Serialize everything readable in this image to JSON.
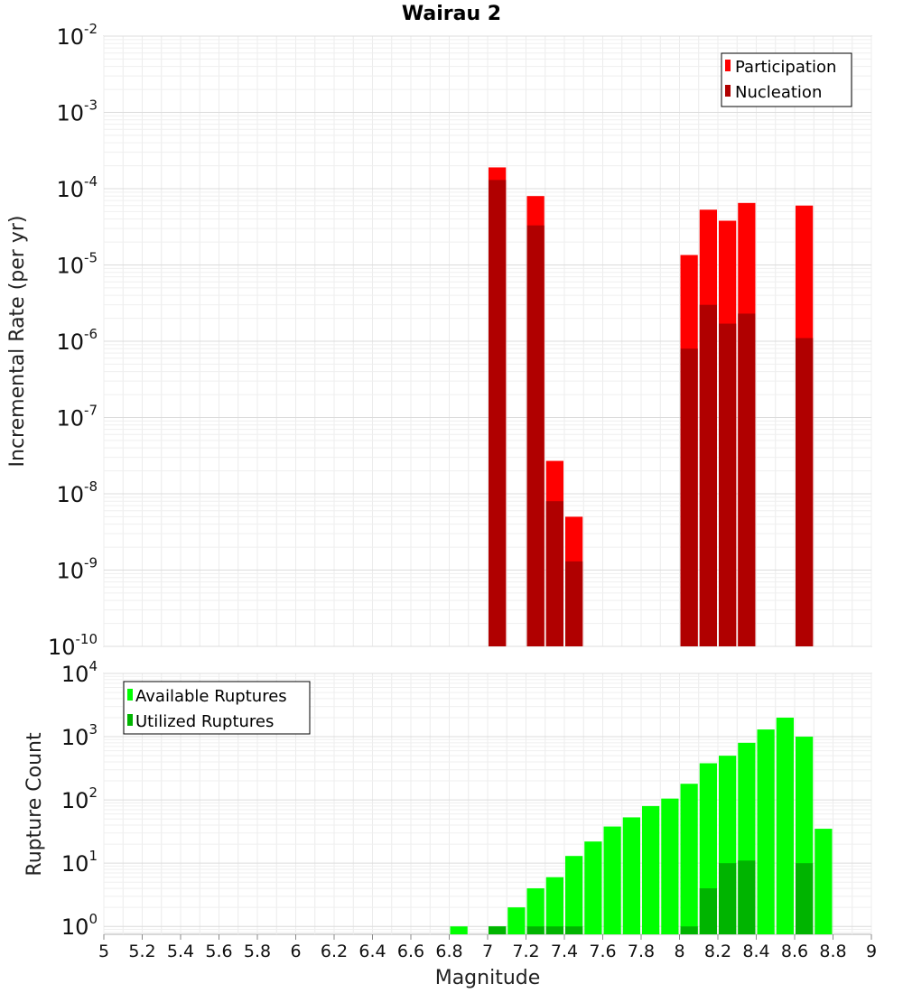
{
  "chart_data": [
    {
      "type": "bar",
      "title": "Wairau 2",
      "xlabel": "",
      "ylabel": "Incremental Rate (per yr)",
      "yscale": "log",
      "ylim": [
        1e-10,
        0.01
      ],
      "xlim": [
        5,
        9
      ],
      "grid": true,
      "legend_position": "top-right",
      "y_tick_labels": [
        "10^-10",
        "10^-9",
        "10^-8",
        "10^-7",
        "10^-6",
        "10^-5",
        "10^-4",
        "10^-3",
        "10^-2"
      ],
      "series": [
        {
          "name": "Participation",
          "color": "#ff0000",
          "x": [
            7.05,
            7.25,
            7.35,
            7.45,
            8.05,
            8.15,
            8.25,
            8.35,
            8.65
          ],
          "values": [
            0.00019,
            8e-05,
            2.7e-08,
            5e-09,
            1.35e-05,
            5.3e-05,
            3.8e-05,
            6.5e-05,
            6e-05
          ]
        },
        {
          "name": "Nucleation",
          "color": "#b00000",
          "x": [
            7.05,
            7.25,
            7.35,
            7.45,
            8.05,
            8.15,
            8.25,
            8.35,
            8.65
          ],
          "values": [
            0.00013,
            3.3e-05,
            8e-09,
            1.3e-09,
            8e-07,
            3e-06,
            1.7e-06,
            2.3e-06,
            1.1e-06
          ]
        }
      ]
    },
    {
      "type": "bar",
      "title": "",
      "xlabel": "Magnitude",
      "ylabel": "Rupture Count",
      "yscale": "log",
      "ylim": [
        0.75,
        10000
      ],
      "xlim": [
        5,
        9
      ],
      "grid": true,
      "legend_position": "top-left",
      "y_tick_labels": [
        "10^0",
        "10^1",
        "10^2",
        "10^3",
        "10^4"
      ],
      "x_tick_labels": [
        "5",
        "5.2",
        "5.4",
        "5.6",
        "5.8",
        "6",
        "6.2",
        "6.4",
        "6.6",
        "6.8",
        "7",
        "7.2",
        "7.4",
        "7.6",
        "7.8",
        "8",
        "8.2",
        "8.4",
        "8.6",
        "8.8",
        "9"
      ],
      "series": [
        {
          "name": "Available Ruptures",
          "color": "#00ff00",
          "x": [
            6.85,
            7.05,
            7.15,
            7.25,
            7.35,
            7.45,
            7.55,
            7.65,
            7.75,
            7.85,
            7.95,
            8.05,
            8.15,
            8.25,
            8.35,
            8.45,
            8.55,
            8.65,
            8.75
          ],
          "values": [
            1,
            1,
            2,
            4,
            6,
            13,
            22,
            38,
            53,
            80,
            105,
            180,
            380,
            500,
            800,
            1300,
            2000,
            1000,
            35
          ]
        },
        {
          "name": "Utilized Ruptures",
          "color": "#00b400",
          "x": [
            7.05,
            7.25,
            7.35,
            7.45,
            8.05,
            8.15,
            8.25,
            8.35,
            8.65
          ],
          "values": [
            1,
            1,
            1,
            1,
            1,
            4,
            10,
            11,
            10
          ]
        }
      ]
    }
  ]
}
